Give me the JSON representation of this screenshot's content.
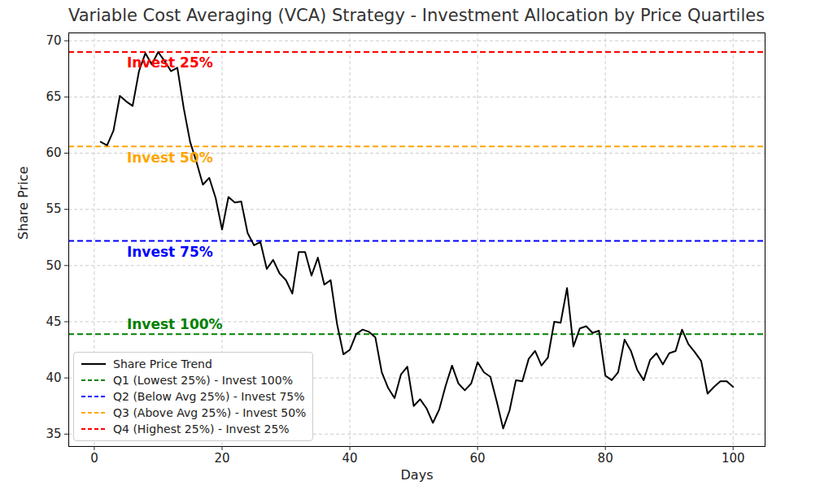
{
  "chart_data": {
    "type": "line",
    "title": "Variable Cost Averaging (VCA) Strategy - Investment Allocation by Price Quartiles",
    "x_label": "Days",
    "y_label": "Share Price",
    "x": [
      1,
      2,
      3,
      4,
      5,
      6,
      7,
      8,
      9,
      10,
      11,
      12,
      13,
      14,
      15,
      16,
      17,
      18,
      19,
      20,
      21,
      22,
      23,
      24,
      25,
      26,
      27,
      28,
      29,
      30,
      31,
      32,
      33,
      34,
      35,
      36,
      37,
      38,
      39,
      40,
      41,
      42,
      43,
      44,
      45,
      46,
      47,
      48,
      49,
      50,
      51,
      52,
      53,
      54,
      55,
      56,
      57,
      58,
      59,
      60,
      61,
      62,
      63,
      64,
      65,
      66,
      67,
      68,
      69,
      70,
      71,
      72,
      73,
      74,
      75,
      76,
      77,
      78,
      79,
      80,
      81,
      82,
      83,
      84,
      85,
      86,
      87,
      88,
      89,
      90,
      91,
      92,
      93,
      94,
      95,
      96,
      97,
      98,
      99,
      100
    ],
    "series": [
      {
        "name": "Share Price Trend",
        "color": "black",
        "line_style": "solid",
        "values": [
          61.0,
          60.7,
          62.0,
          65.1,
          64.6,
          64.2,
          67.3,
          68.9,
          67.9,
          69.0,
          68.2,
          67.3,
          67.6,
          64.0,
          61.0,
          59.2,
          57.2,
          57.8,
          56.0,
          53.2,
          56.1,
          55.6,
          55.7,
          52.9,
          51.8,
          52.1,
          49.7,
          50.5,
          49.3,
          48.7,
          47.5,
          51.2,
          51.2,
          49.1,
          50.7,
          48.3,
          48.7,
          44.8,
          42.1,
          42.5,
          43.9,
          44.3,
          44.1,
          43.6,
          40.5,
          39.1,
          38.2,
          40.3,
          41.0,
          37.5,
          38.1,
          37.3,
          36.0,
          37.2,
          39.3,
          41.1,
          39.5,
          38.9,
          39.5,
          41.4,
          40.5,
          40.1,
          37.9,
          35.5,
          37.1,
          39.8,
          39.7,
          41.7,
          42.4,
          41.1,
          41.8,
          45.0,
          44.9,
          48.0,
          42.8,
          44.4,
          44.6,
          44.0,
          44.2,
          40.2,
          39.8,
          40.5,
          43.4,
          42.4,
          40.7,
          39.8,
          41.6,
          42.2,
          41.2,
          42.2,
          42.4,
          44.3,
          43.0,
          42.3,
          41.5,
          38.6,
          39.2,
          39.7,
          39.7,
          39.2
        ]
      }
    ],
    "reference_lines": [
      {
        "name": "Q1 (Lowest 25%) - Invest 100%",
        "value": 43.9,
        "color": "green",
        "line_style": "dashed",
        "label": "Invest 100%"
      },
      {
        "name": "Q2 (Below Avg 25%) - Invest 75%",
        "value": 52.2,
        "color": "blue",
        "line_style": "dashed",
        "label": "Invest 75%"
      },
      {
        "name": "Q3 (Above Avg 25%) - Invest 50%",
        "value": 60.6,
        "color": "orange",
        "line_style": "dashed",
        "label": "Invest 50%"
      },
      {
        "name": "Q4 (Highest 25%) - Invest 25%",
        "value": 69.0,
        "color": "red",
        "line_style": "dashed",
        "label": "Invest 25%"
      }
    ],
    "xlim": [
      -4,
      105
    ],
    "ylim": [
      33.9,
      70.7
    ],
    "xticks": [
      0,
      20,
      40,
      60,
      80,
      100
    ],
    "yticks": [
      35,
      40,
      45,
      50,
      55,
      60,
      65,
      70
    ],
    "grid": true,
    "legend": "lower left"
  }
}
